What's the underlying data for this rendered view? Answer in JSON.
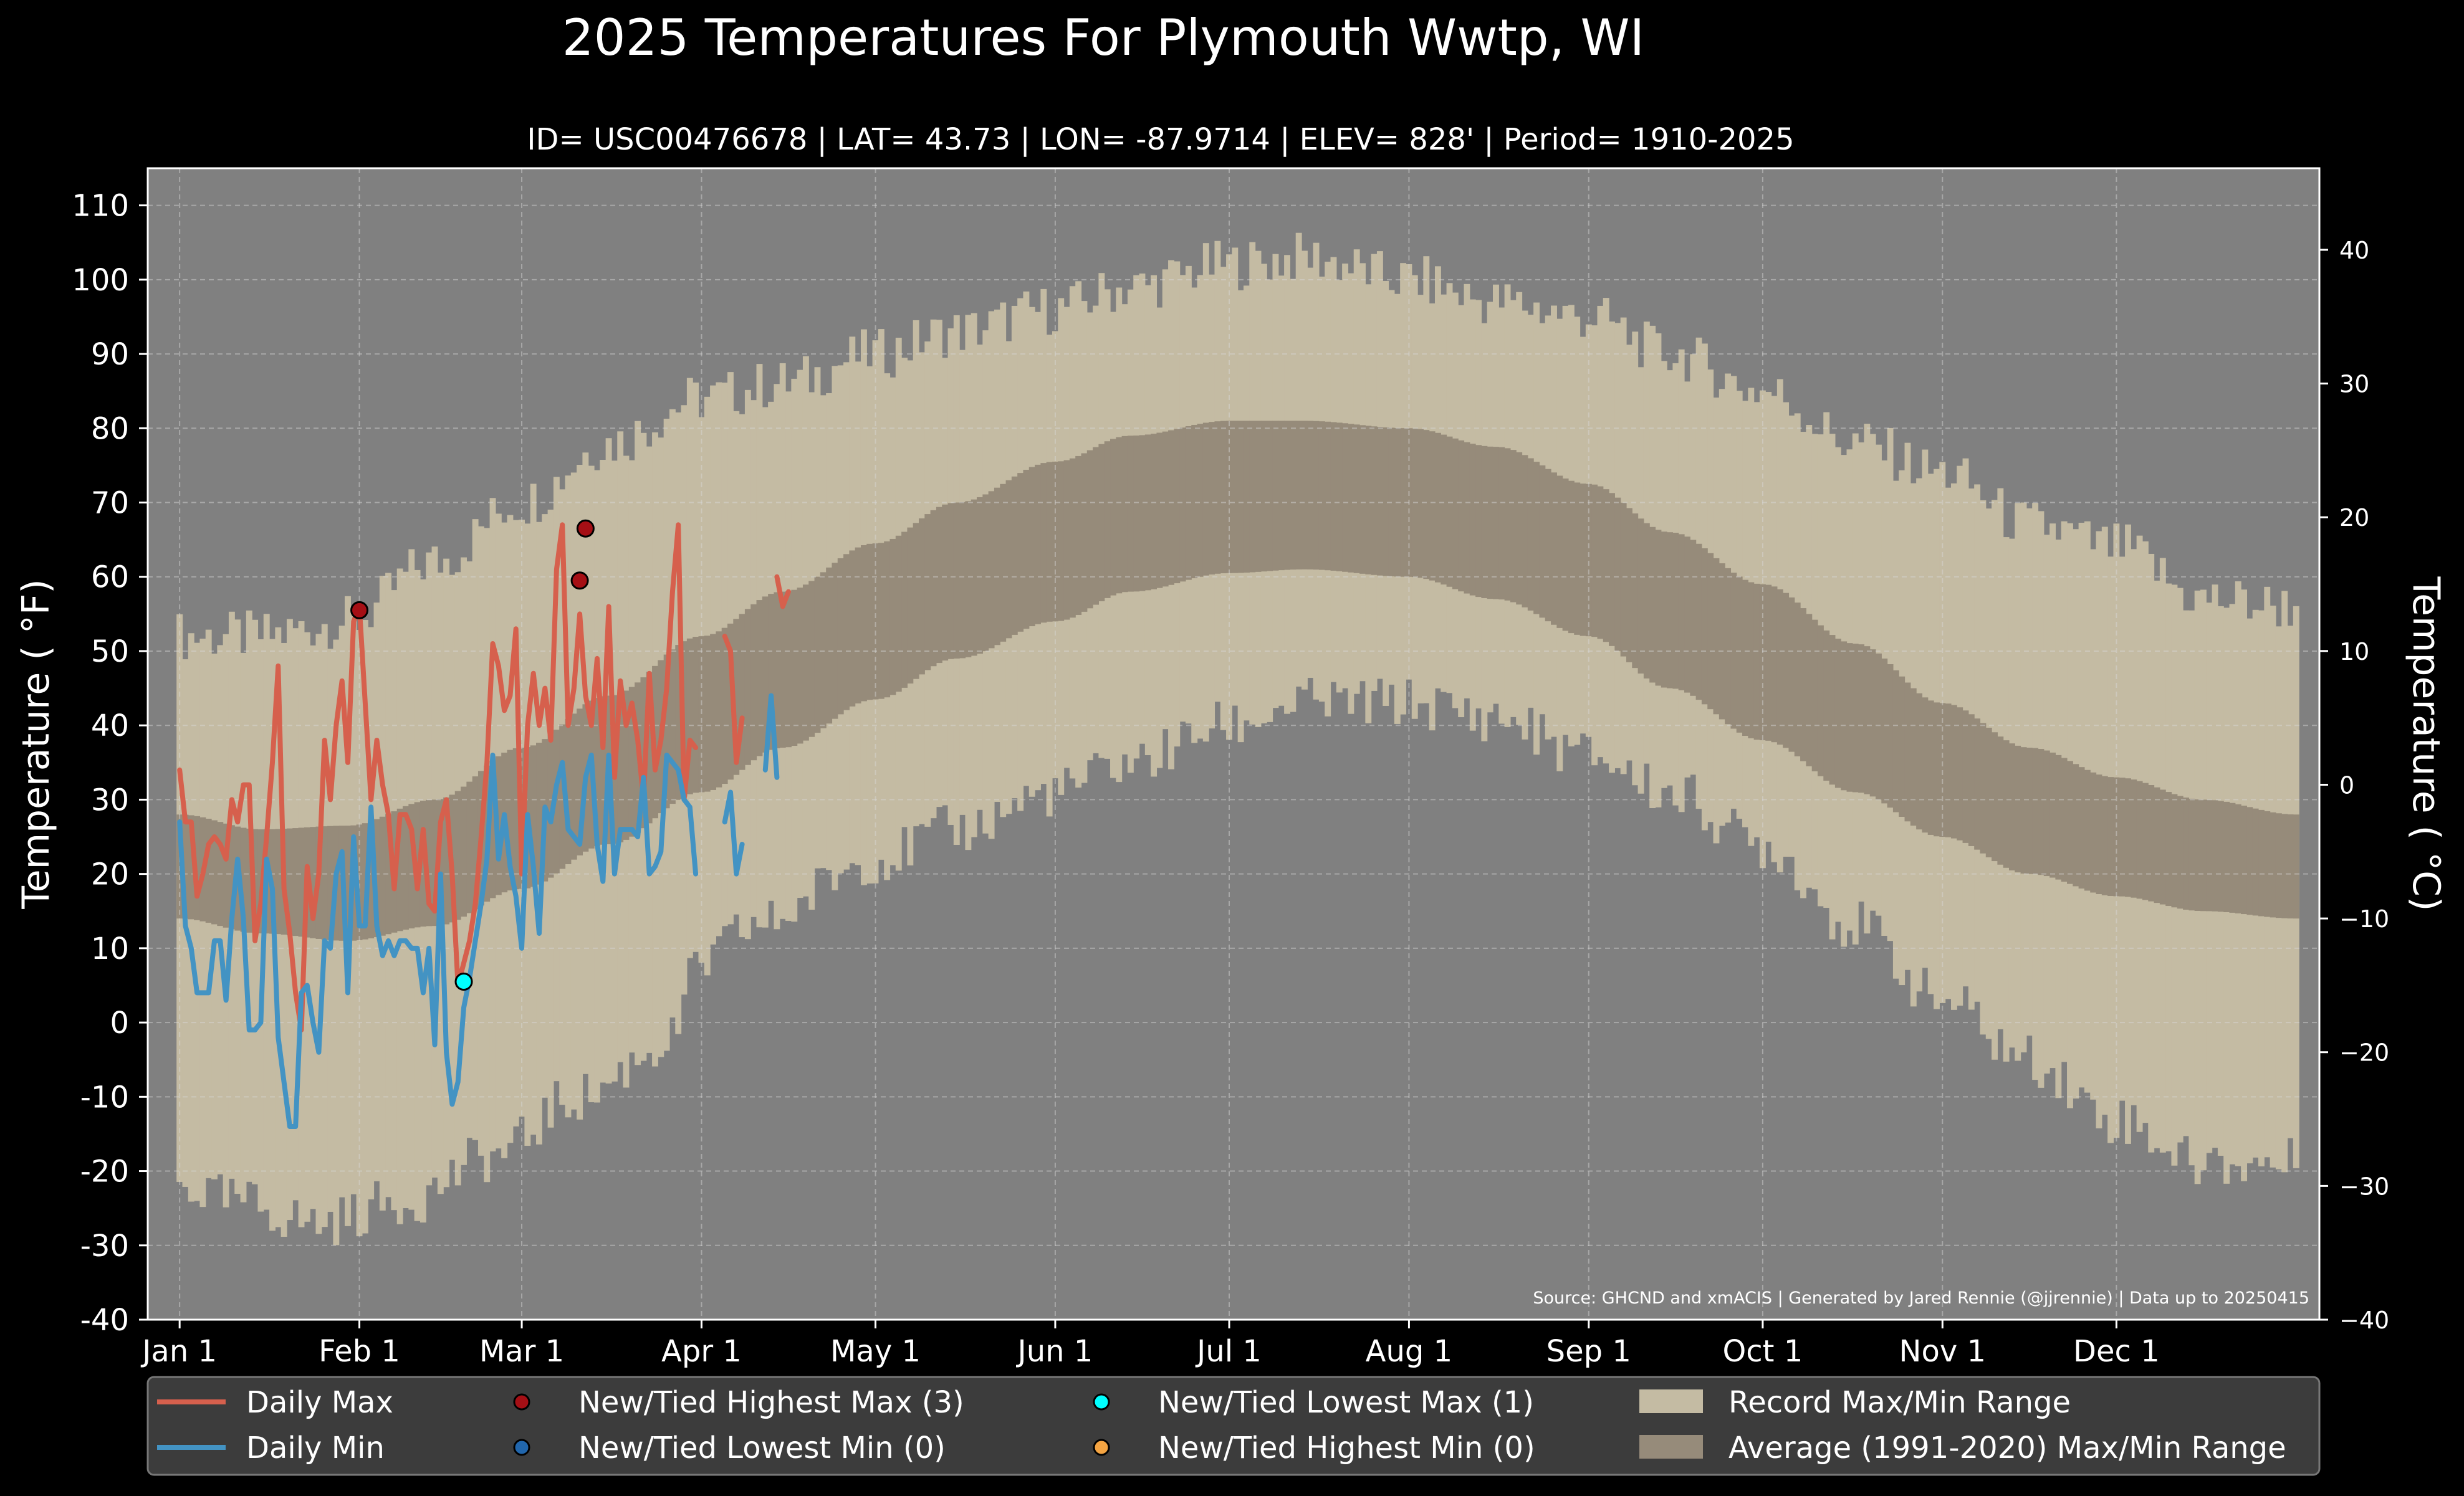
{
  "chart_data": {
    "type": "area",
    "title": "2025 Temperatures For Plymouth Wwtp, WI",
    "subtitle": "ID= USC00476678 | LAT= 43.73 | LON= -87.9714 | ELEV= 828' | Period= 1910-2025",
    "ylabel": "Temperature ($^\\circ$F)",
    "ylabel_display": "Temperature ( °F)",
    "ylabel_right": "Temperature ( °C)",
    "source": "Source: GHCND and xmACIS | Generated by Jared Rennie (@jjrennie) | Data up to 20250415",
    "ylim": [
      -40,
      115
    ],
    "yticks": [
      110,
      100,
      90,
      80,
      70,
      60,
      50,
      40,
      30,
      20,
      10,
      0,
      -10,
      -20,
      -30,
      -40
    ],
    "ylim_right": [
      -40,
      46.1
    ],
    "yticks_right": [
      40,
      30,
      20,
      10,
      0,
      -10,
      -20,
      -30,
      -40
    ],
    "yticks_right_labels": [
      "40",
      "30",
      "20",
      "10",
      "0",
      "−10",
      "−20",
      "−30",
      "−40"
    ],
    "xlim_days": [
      -4.5,
      370
    ],
    "month_ticks": {
      "labels": [
        "Jan 1",
        "Feb 1",
        "Mar 1",
        "Apr 1",
        "May 1",
        "Jun 1",
        "Jul 1",
        "Aug 1",
        "Sep 1",
        "Oct 1",
        "Nov 1",
        "Dec 1"
      ],
      "days": [
        1,
        32,
        60,
        91,
        121,
        152,
        182,
        213,
        244,
        274,
        305,
        335
      ]
    },
    "grid": true,
    "legend_position": "bottom",
    "colors": {
      "background": "#808080",
      "record_range": "#c4bba3",
      "normal_range": "#968b7a",
      "daily_max": "#d6604d",
      "daily_min": "#4393c3",
      "new_highest_max": "#a50f15",
      "new_lowest_min": "#2166ac",
      "new_lowest_max": "#00ffff",
      "new_highest_min": "#f4a442"
    },
    "record_high_knots": [
      [
        1,
        52
      ],
      [
        15,
        52
      ],
      [
        30,
        54
      ],
      [
        45,
        62
      ],
      [
        60,
        70
      ],
      [
        75,
        78
      ],
      [
        91,
        84
      ],
      [
        105,
        86
      ],
      [
        121,
        90
      ],
      [
        135,
        93
      ],
      [
        152,
        96
      ],
      [
        165,
        99
      ],
      [
        182,
        102
      ],
      [
        195,
        103
      ],
      [
        213,
        100
      ],
      [
        228,
        97
      ],
      [
        244,
        95
      ],
      [
        258,
        90
      ],
      [
        274,
        85
      ],
      [
        290,
        78
      ],
      [
        305,
        74
      ],
      [
        320,
        67
      ],
      [
        335,
        64
      ],
      [
        350,
        57
      ],
      [
        366,
        56
      ]
    ],
    "record_low_knots": [
      [
        1,
        -22
      ],
      [
        10,
        -24
      ],
      [
        25,
        -27
      ],
      [
        40,
        -24
      ],
      [
        55,
        -18
      ],
      [
        70,
        -10
      ],
      [
        85,
        -3
      ],
      [
        91,
        8
      ],
      [
        100,
        13
      ],
      [
        121,
        22
      ],
      [
        135,
        26
      ],
      [
        152,
        31
      ],
      [
        165,
        35
      ],
      [
        182,
        40
      ],
      [
        195,
        43
      ],
      [
        213,
        43
      ],
      [
        228,
        41
      ],
      [
        244,
        36
      ],
      [
        258,
        31
      ],
      [
        274,
        24
      ],
      [
        290,
        13
      ],
      [
        305,
        3
      ],
      [
        320,
        -5
      ],
      [
        335,
        -13
      ],
      [
        350,
        -19
      ],
      [
        366,
        -19
      ]
    ],
    "normal_high_knots": [
      [
        1,
        28
      ],
      [
        15,
        26
      ],
      [
        30,
        26.5
      ],
      [
        45,
        30
      ],
      [
        60,
        37
      ],
      [
        75,
        44
      ],
      [
        91,
        52
      ],
      [
        105,
        58
      ],
      [
        121,
        64.5
      ],
      [
        135,
        70
      ],
      [
        152,
        75.5
      ],
      [
        165,
        79
      ],
      [
        182,
        81
      ],
      [
        195,
        81
      ],
      [
        213,
        80
      ],
      [
        228,
        77.5
      ],
      [
        244,
        72.5
      ],
      [
        258,
        66
      ],
      [
        274,
        59
      ],
      [
        290,
        51
      ],
      [
        305,
        43
      ],
      [
        320,
        37
      ],
      [
        335,
        33
      ],
      [
        350,
        30
      ],
      [
        366,
        28
      ]
    ],
    "normal_low_knots": [
      [
        1,
        14
      ],
      [
        15,
        12
      ],
      [
        30,
        11
      ],
      [
        45,
        13
      ],
      [
        60,
        18
      ],
      [
        75,
        24
      ],
      [
        91,
        31
      ],
      [
        105,
        37
      ],
      [
        121,
        43.5
      ],
      [
        135,
        49
      ],
      [
        152,
        54
      ],
      [
        165,
        58
      ],
      [
        182,
        60.5
      ],
      [
        195,
        61
      ],
      [
        213,
        60
      ],
      [
        228,
        57
      ],
      [
        244,
        52
      ],
      [
        258,
        45
      ],
      [
        274,
        38
      ],
      [
        290,
        31
      ],
      [
        305,
        25
      ],
      [
        320,
        20
      ],
      [
        335,
        17
      ],
      [
        350,
        15
      ],
      [
        366,
        14
      ]
    ],
    "series": [
      {
        "name": "Daily Max",
        "x": [
          1,
          2,
          3,
          4,
          5,
          6,
          7,
          8,
          9,
          10,
          11,
          12,
          13,
          14,
          15,
          16,
          17,
          18,
          19,
          20,
          21,
          22,
          23,
          24,
          25,
          26,
          27,
          28,
          29,
          30,
          31,
          32,
          33,
          34,
          35,
          36,
          37,
          38,
          39,
          40,
          41,
          42,
          43,
          44,
          45,
          46,
          47,
          48,
          49,
          50,
          51,
          52,
          53,
          54,
          55,
          56,
          57,
          58,
          59,
          60,
          61,
          62,
          63,
          64,
          65,
          66,
          67,
          68,
          69,
          70,
          71,
          72,
          73,
          74,
          75,
          76,
          77,
          78,
          79,
          80,
          81,
          82,
          83,
          84,
          85,
          86,
          87,
          88,
          89,
          90,
          null,
          95,
          96,
          97,
          98,
          null,
          104,
          105,
          106
        ],
        "y": [
          34,
          27,
          27,
          17,
          20,
          24,
          25,
          24,
          22,
          30,
          27,
          32,
          32,
          11,
          16,
          25,
          35,
          48,
          18,
          12,
          4,
          -1,
          21,
          14,
          20,
          38,
          30,
          40,
          46,
          35,
          54,
          56,
          43,
          30,
          38,
          32,
          28,
          18,
          28,
          28,
          26,
          18,
          26,
          16,
          15,
          27,
          30,
          20,
          5,
          8,
          11,
          16,
          25,
          35,
          51,
          48,
          42,
          44,
          53,
          20,
          40,
          47,
          40,
          45,
          38,
          61,
          67,
          40,
          45,
          55,
          44,
          40,
          49,
          37,
          56,
          33,
          46,
          40,
          43,
          38,
          30,
          47,
          34,
          38,
          45,
          58,
          67,
          30,
          38,
          37,
          null,
          52,
          50,
          35,
          41,
          null,
          60,
          56,
          58
        ]
      },
      {
        "name": "Daily Min",
        "x": [
          1,
          2,
          3,
          4,
          5,
          6,
          7,
          8,
          9,
          10,
          11,
          12,
          13,
          14,
          15,
          16,
          17,
          18,
          19,
          20,
          21,
          22,
          23,
          24,
          25,
          26,
          27,
          28,
          29,
          30,
          31,
          32,
          33,
          34,
          35,
          36,
          37,
          38,
          39,
          40,
          41,
          42,
          43,
          44,
          45,
          46,
          47,
          48,
          49,
          50,
          51,
          52,
          53,
          54,
          55,
          56,
          57,
          58,
          59,
          60,
          61,
          62,
          63,
          64,
          65,
          66,
          67,
          68,
          69,
          70,
          71,
          72,
          73,
          74,
          75,
          76,
          77,
          78,
          79,
          80,
          81,
          82,
          83,
          84,
          85,
          86,
          87,
          88,
          89,
          90,
          null,
          95,
          96,
          97,
          98,
          null,
          102,
          103,
          104
        ],
        "y": [
          27,
          13,
          10,
          4,
          4,
          4,
          11,
          11,
          3,
          14,
          22,
          14,
          -1,
          -1,
          0,
          22,
          18,
          -2,
          -8,
          -14,
          -14,
          4,
          5,
          0,
          -4,
          11,
          10,
          20,
          23,
          4,
          25,
          13,
          13,
          29,
          13,
          9,
          11,
          9,
          11,
          11,
          10,
          10,
          4,
          10,
          -3,
          20,
          -4,
          -11,
          -8,
          2,
          6,
          11,
          16,
          22,
          36,
          22,
          28,
          21,
          17,
          10,
          28,
          21,
          12,
          29,
          27,
          32,
          35,
          26,
          25,
          24,
          33,
          36,
          24,
          19,
          36,
          20,
          26,
          26,
          26,
          25,
          33,
          20,
          21,
          23,
          36,
          35,
          34,
          30,
          29,
          20,
          null,
          27,
          31,
          20,
          24,
          null,
          34,
          44,
          33
        ]
      }
    ],
    "record_points": [
      {
        "type": "new_highest_max",
        "x": 32,
        "y": 55.5
      },
      {
        "type": "new_highest_max",
        "x": 70,
        "y": 59.5
      },
      {
        "type": "new_highest_max",
        "x": 71,
        "y": 66.5
      },
      {
        "type": "new_lowest_max",
        "x": 50,
        "y": 5.5
      }
    ],
    "legend": [
      {
        "label": "Daily Max",
        "kind": "line",
        "color": "#d6604d"
      },
      {
        "label": "Daily Min",
        "kind": "line",
        "color": "#4393c3"
      },
      {
        "label": "New/Tied Highest Max (3)",
        "kind": "dot",
        "color": "#a50f15"
      },
      {
        "label": "New/Tied Lowest Min (0)",
        "kind": "dot",
        "color": "#2166ac"
      },
      {
        "label": "New/Tied Lowest Max (1)",
        "kind": "dot",
        "color": "#00ffff"
      },
      {
        "label": "New/Tied Highest Min (0)",
        "kind": "dot",
        "color": "#f4a442"
      },
      {
        "label": "Record Max/Min Range",
        "kind": "patch",
        "color": "#c4bba3"
      },
      {
        "label": "Average (1991-2020) Max/Min Range",
        "kind": "patch",
        "color": "#968b7a"
      }
    ]
  }
}
